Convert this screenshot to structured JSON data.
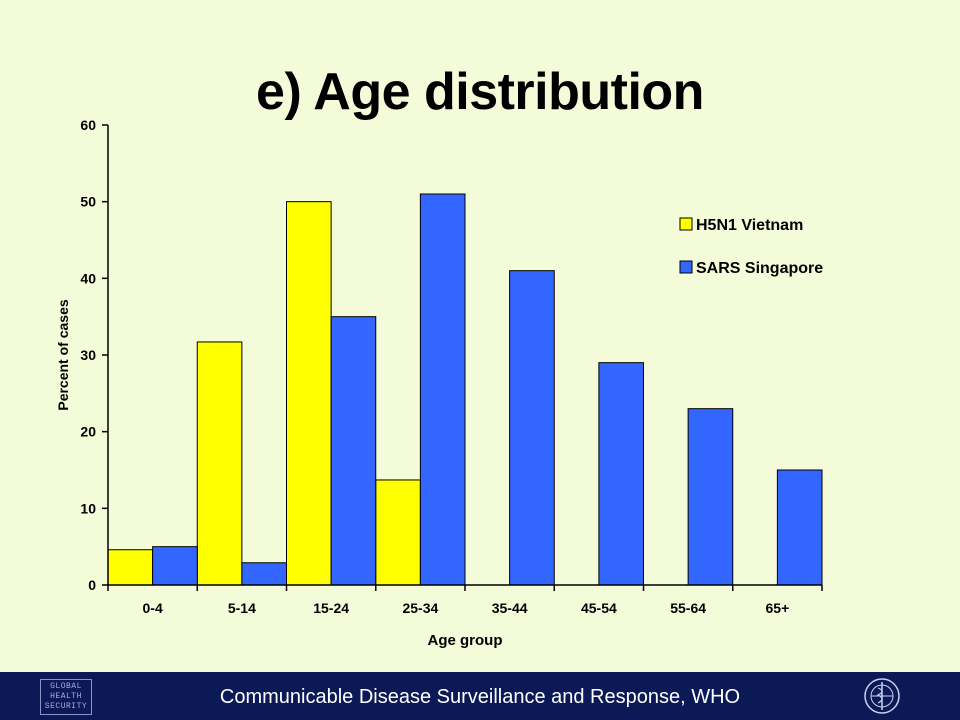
{
  "title": "e) Age distribution",
  "chart_data": {
    "type": "bar",
    "categories": [
      "0-4",
      "5-14",
      "15-24",
      "25-34",
      "35-44",
      "45-54",
      "55-64",
      "65+"
    ],
    "series": [
      {
        "name": "H5N1 Vietnam",
        "color": "#ffff00",
        "values": [
          4.6,
          31.7,
          50,
          13.7,
          0,
          0,
          0,
          0
        ]
      },
      {
        "name": "SARS Singapore",
        "color": "#3366ff",
        "values": [
          5,
          2.9,
          35,
          51,
          41,
          29,
          23,
          15
        ]
      }
    ],
    "xlabel": "Age group",
    "ylabel": "Percent of cases",
    "ylim": [
      0,
      60
    ],
    "yticks": [
      0,
      10,
      20,
      30,
      40,
      50,
      60
    ],
    "grid": false,
    "legend_position": "top-right"
  },
  "footer": {
    "text": "Communicable Disease Surveillance and Response, WHO",
    "logo_lines": [
      "GLOBAL",
      "HEALTH",
      "SECURITY"
    ],
    "who_icon": "who-emblem-icon"
  }
}
